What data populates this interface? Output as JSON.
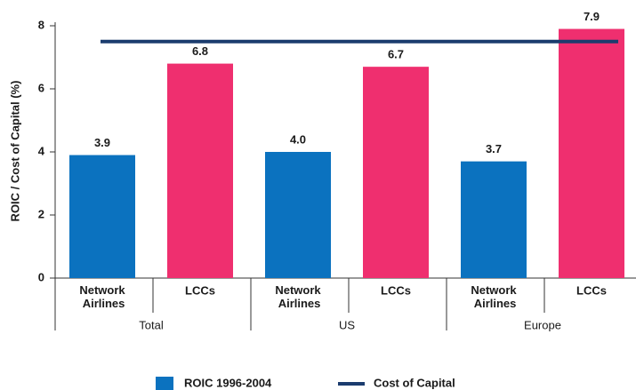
{
  "chart_data": {
    "type": "bar",
    "y_label": "ROIC / Cost of Capital (%)",
    "categories": [
      "Network Airlines",
      "LCCs",
      "Network Airlines",
      "LCCs",
      "Network Airlines",
      "LCCs"
    ],
    "groups": [
      "Total",
      "US",
      "Europe"
    ],
    "series": [
      {
        "name": "ROIC 1996-2004",
        "color": "#0b72bf",
        "colors": [
          "#0b72bf",
          "#ef2f6f",
          "#0b72bf",
          "#ef2f6f",
          "#0b72bf",
          "#ef2f6f"
        ],
        "values": [
          3.9,
          6.8,
          4.0,
          6.7,
          3.7,
          7.9
        ],
        "value_labels": [
          "3.9",
          "6.8",
          "4.0",
          "6.7",
          "3.7",
          "7.9"
        ]
      }
    ],
    "cost_of_capital": {
      "name": "Cost of Capital",
      "value": 7.5,
      "color": "#1b3c6e"
    },
    "ylim": [
      0,
      8
    ],
    "yticks": [
      0,
      2,
      4,
      6,
      8
    ]
  }
}
